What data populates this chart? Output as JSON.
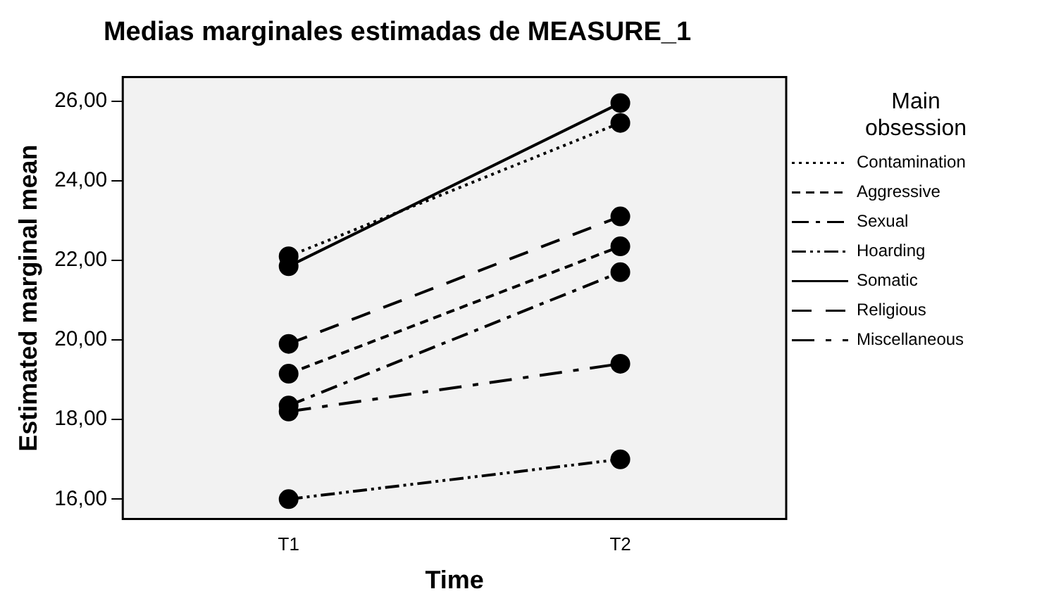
{
  "chart_data": {
    "type": "line",
    "title": "Medias marginales estimadas de MEASURE_1",
    "xlabel": "Time",
    "ylabel": "Estimated marginal mean",
    "legend_title": "Main obsession",
    "legend": "right",
    "marker": "circle",
    "grid": false,
    "categories": [
      "T1",
      "T2"
    ],
    "ylim": [
      15.5,
      26.6
    ],
    "yticks": [
      {
        "value": 16,
        "label": "16,00"
      },
      {
        "value": 18,
        "label": "18,00"
      },
      {
        "value": 20,
        "label": "20,00"
      },
      {
        "value": 22,
        "label": "22,00"
      },
      {
        "value": 24,
        "label": "24,00"
      },
      {
        "value": 26,
        "label": "26,00"
      }
    ],
    "series": [
      {
        "name": "Contamination",
        "color": "#000000",
        "line_style": "dotted",
        "values": [
          22.1,
          25.45
        ]
      },
      {
        "name": "Aggressive",
        "color": "#000000",
        "line_style": "dashed",
        "values": [
          19.15,
          22.35
        ]
      },
      {
        "name": "Sexual",
        "color": "#000000",
        "line_style": "dashed",
        "values": [
          18.35,
          21.7
        ]
      },
      {
        "name": "Hoarding",
        "color": "#000000",
        "line_style": "dashed",
        "values": [
          16.0,
          17.0
        ]
      },
      {
        "name": "Somatic",
        "color": "#000000",
        "line_style": "solid",
        "values": [
          21.85,
          25.95
        ]
      },
      {
        "name": "Religious",
        "color": "#000000",
        "line_style": "dashed",
        "values": [
          19.9,
          23.1
        ]
      },
      {
        "name": "Miscellaneous",
        "color": "#000000",
        "line_style": "dashed",
        "values": [
          18.2,
          19.4
        ]
      }
    ]
  }
}
